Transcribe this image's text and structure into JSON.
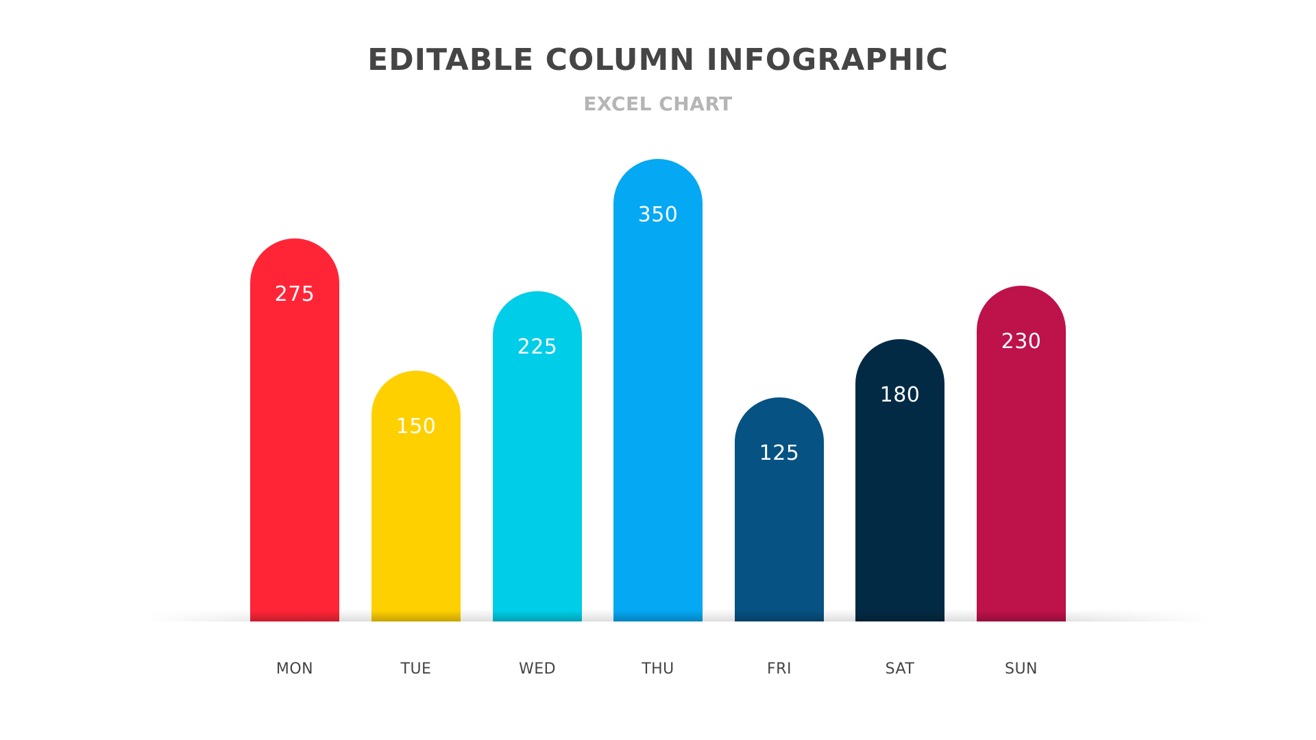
{
  "header": {
    "title": "EDITABLE COLUMN INFOGRAPHIC",
    "subtitle": "EXCEL CHART"
  },
  "chart_data": {
    "type": "bar",
    "title": "EDITABLE COLUMN INFOGRAPHIC",
    "subtitle": "EXCEL CHART",
    "categories": [
      "MON",
      "TUE",
      "WED",
      "THU",
      "FRI",
      "SAT",
      "SUN"
    ],
    "values": [
      275,
      150,
      225,
      350,
      125,
      180,
      230
    ],
    "colors": [
      "#FF2537",
      "#FFD000",
      "#00CDE8",
      "#05A8F3",
      "#065283",
      "#032A44",
      "#BE124B"
    ],
    "xlabel": "",
    "ylabel": "",
    "grid": false,
    "legend": false,
    "data_labels": true
  },
  "bars": [
    {
      "label": "MON",
      "value": "275",
      "color": "#FF2537"
    },
    {
      "label": "TUE",
      "value": "150",
      "color": "#FFD000"
    },
    {
      "label": "WED",
      "value": "225",
      "color": "#00CDE8"
    },
    {
      "label": "THU",
      "value": "350",
      "color": "#05A8F3"
    },
    {
      "label": "FRI",
      "value": "125",
      "color": "#065283"
    },
    {
      "label": "SAT",
      "value": "180",
      "color": "#032A44"
    },
    {
      "label": "SUN",
      "value": "230",
      "color": "#BE124B"
    }
  ]
}
